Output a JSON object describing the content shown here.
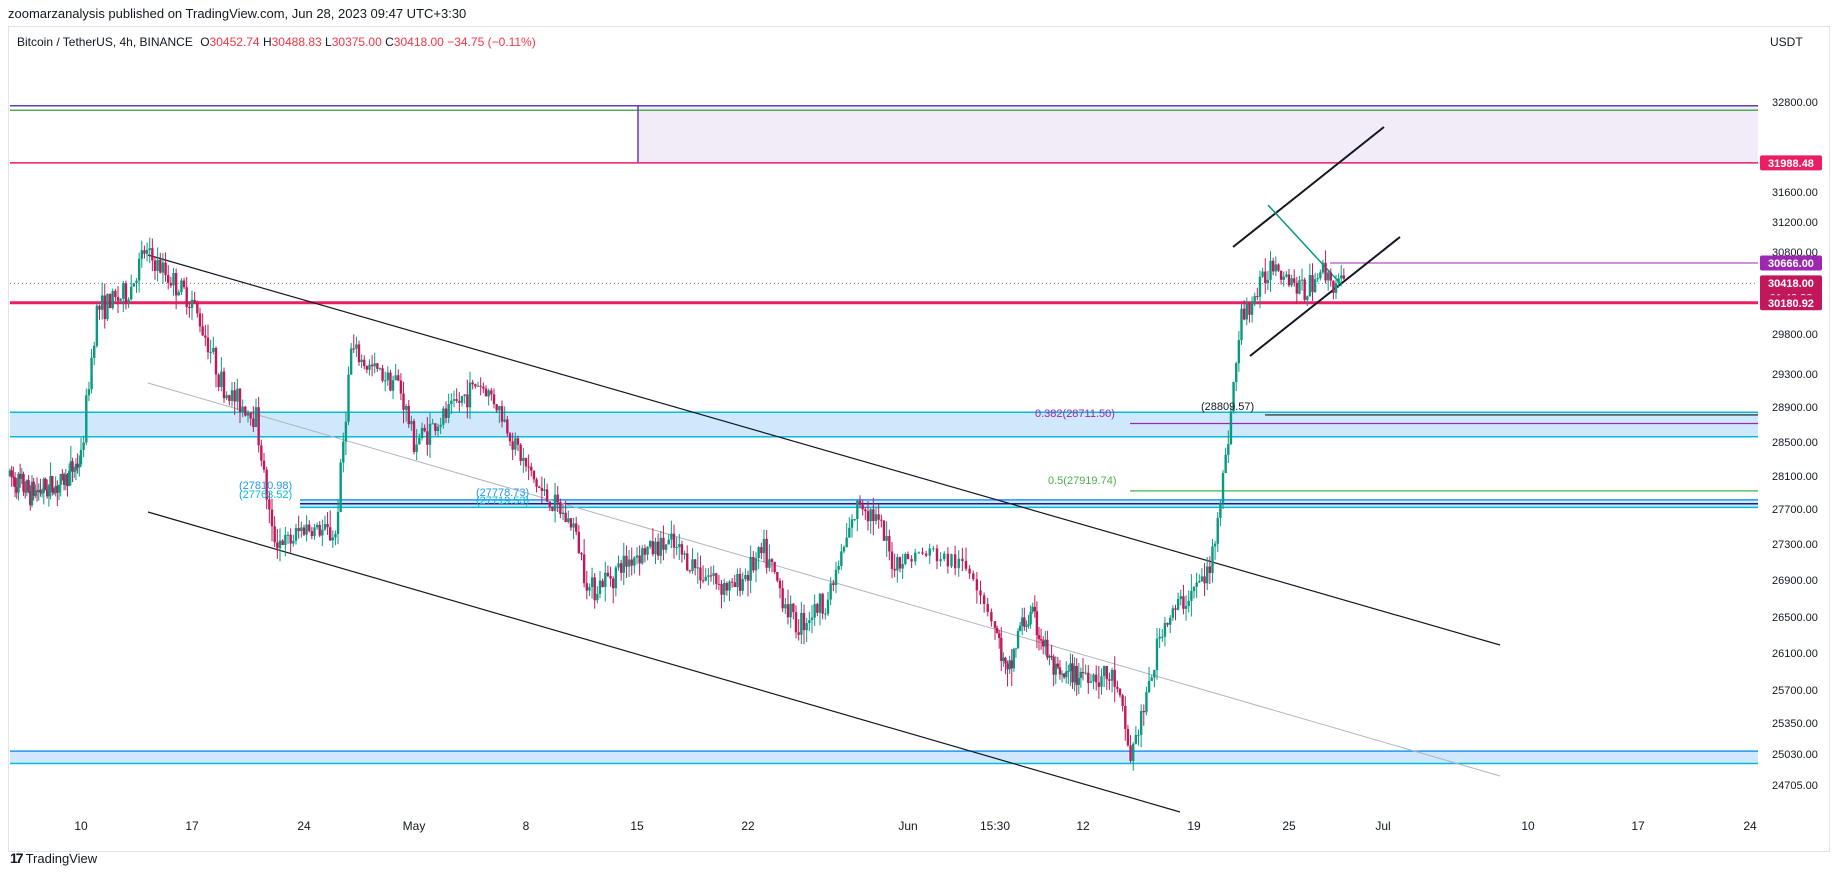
{
  "publisher": "zoomarzanalysis published on TradingView.com, Jun 28, 2023 09:47 UTC+3:30",
  "legend": {
    "symbol": "Bitcoin / TetherUS, 4h, BINANCE",
    "open_label": "O",
    "open": "30452.74",
    "high_label": "H",
    "high": "30488.83",
    "low_label": "L",
    "low": "30375.00",
    "close_label": "C",
    "close": "30418.00",
    "change": "−34.75 (−0.11%)"
  },
  "unit": "USDT",
  "footer": {
    "logo": "17",
    "brand": "TradingView"
  },
  "colors": {
    "up": "#089981",
    "down": "#c2185b",
    "resistance": "#e91e63",
    "zone_purple": "#673ab7",
    "zone_blue": "#2196f3",
    "zone_cyan": "#00bcd4",
    "price_tag": "#c2185b",
    "tag_purple": "#9c27b0"
  },
  "chart_data": {
    "type": "candlestick",
    "y_ticks": [
      32800,
      31600,
      31200,
      30800,
      29800,
      29300,
      28900,
      28500,
      28100,
      27700,
      27300,
      26900,
      26500,
      26100,
      25700,
      25350,
      25030,
      24705
    ],
    "x_ticks": [
      {
        "label": "10",
        "date": "2023-04-10"
      },
      {
        "label": "17",
        "date": "2023-04-17"
      },
      {
        "label": "24",
        "date": "2023-04-24"
      },
      {
        "label": "May",
        "date": "2023-05-01"
      },
      {
        "label": "8",
        "date": "2023-05-08"
      },
      {
        "label": "15",
        "date": "2023-05-15"
      },
      {
        "label": "22",
        "date": "2023-05-22"
      },
      {
        "label": "Jun",
        "date": "2023-06-01"
      },
      {
        "label": "15:30",
        "date": "2023-06-05"
      },
      {
        "label": "12",
        "date": "2023-06-12"
      },
      {
        "label": "19",
        "date": "2023-06-19"
      },
      {
        "label": "25",
        "date": "2023-06-25"
      },
      {
        "label": "Jul",
        "date": "2023-07-01"
      },
      {
        "label": "10",
        "date": "2023-07-10"
      },
      {
        "label": "17",
        "date": "2023-07-17"
      },
      {
        "label": "24",
        "date": "2023-07-24"
      }
    ],
    "price_tags": [
      {
        "label": "31988.48",
        "price": 31988.48,
        "color": "#e91e63"
      },
      {
        "label": "30666.00",
        "price": 30666.0,
        "color": "#9c27b0"
      },
      {
        "label": "30418.00",
        "sub": "01:42:32",
        "price": 30418.0,
        "color": "#c2185b"
      },
      {
        "label": "30180.92",
        "price": 30180.92,
        "color": "#c2185b"
      }
    ],
    "path": [
      [
        "2023-04-03",
        28100
      ],
      [
        "2023-04-05",
        27900
      ],
      [
        "2023-04-08",
        28000
      ],
      [
        "2023-04-10",
        28300
      ],
      [
        "2023-04-11",
        30100
      ],
      [
        "2023-04-13",
        30300
      ],
      [
        "2023-04-14",
        30800
      ],
      [
        "2023-04-16",
        30400
      ],
      [
        "2023-04-17",
        30200
      ],
      [
        "2023-04-18",
        29700
      ],
      [
        "2023-04-19",
        29100
      ],
      [
        "2023-04-21",
        28800
      ],
      [
        "2023-04-22",
        27400
      ],
      [
        "2023-04-23",
        27300
      ],
      [
        "2023-04-24",
        27500
      ],
      [
        "2023-04-26",
        27400
      ],
      [
        "2023-04-27",
        29600
      ],
      [
        "2023-04-28",
        29400
      ],
      [
        "2023-04-30",
        29200
      ],
      [
        "2023-05-01",
        28500
      ],
      [
        "2023-05-03",
        28800
      ],
      [
        "2023-05-05",
        29200
      ],
      [
        "2023-05-06",
        29000
      ],
      [
        "2023-05-08",
        28200
      ],
      [
        "2023-05-09",
        27900
      ],
      [
        "2023-05-10",
        27700
      ],
      [
        "2023-05-11",
        27500
      ],
      [
        "2023-05-12",
        26800
      ],
      [
        "2023-05-13",
        26900
      ],
      [
        "2023-05-15",
        27200
      ],
      [
        "2023-05-17",
        27300
      ],
      [
        "2023-05-19",
        27000
      ],
      [
        "2023-05-21",
        26800
      ],
      [
        "2023-05-23",
        27200
      ],
      [
        "2023-05-25",
        26400
      ],
      [
        "2023-05-27",
        26700
      ],
      [
        "2023-05-29",
        27800
      ],
      [
        "2023-05-30",
        27600
      ],
      [
        "2023-05-31",
        27100
      ],
      [
        "2023-06-02",
        27200
      ],
      [
        "2023-06-04",
        27000
      ],
      [
        "2023-06-06",
        25800
      ],
      [
        "2023-06-07",
        26400
      ],
      [
        "2023-06-08",
        26500
      ],
      [
        "2023-06-10",
        25800
      ],
      [
        "2023-06-12",
        25900
      ],
      [
        "2023-06-14",
        25800
      ],
      [
        "2023-06-15",
        25000
      ],
      [
        "2023-06-16",
        25600
      ],
      [
        "2023-06-17",
        26400
      ],
      [
        "2023-06-19",
        26800
      ],
      [
        "2023-06-20",
        27000
      ],
      [
        "2023-06-21",
        28300
      ],
      [
        "2023-06-22",
        30000
      ],
      [
        "2023-06-23",
        30300
      ],
      [
        "2023-06-24",
        30700
      ],
      [
        "2023-06-25",
        30500
      ],
      [
        "2023-06-26",
        30300
      ],
      [
        "2023-06-27",
        30600
      ],
      [
        "2023-06-28",
        30418
      ]
    ]
  },
  "annotations": {
    "fib_382": "0.382(28711.50)",
    "fib_5": "0.5(27919.74)",
    "level_28809": "(28809.57)",
    "level_a1": "(27810.98)",
    "level_a2": "(27763.52)",
    "level_b1": "(27778.73)",
    "level_b2": "(27719.53)"
  }
}
